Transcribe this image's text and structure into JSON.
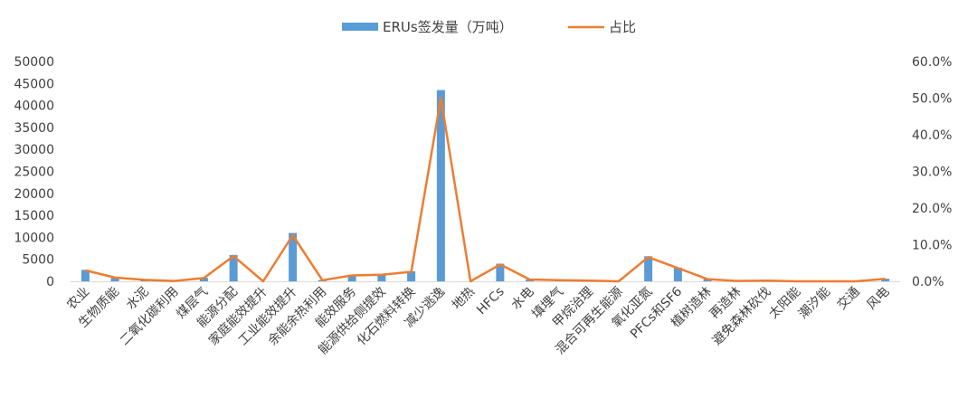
{
  "chart_data": {
    "type": "bar",
    "title": "",
    "categories": [
      "农业",
      "生物质能",
      "水泥",
      "二氧化碳利用",
      "煤层气",
      "能源分配",
      "家庭能效提升",
      "工业能效提升",
      "余能余热利用",
      "能效服务",
      "能源供给侧提效",
      "化石燃料转换",
      "减少逃逸",
      "地热",
      "HFCs",
      "水电",
      "填埋气",
      "甲烷治理",
      "混合可再生能源",
      "氧化亚氮",
      "PFCs和SF6",
      "植树造林",
      "再造林",
      "避免森林砍伐",
      "太阳能",
      "潮汐能",
      "交通",
      "风电"
    ],
    "series": [
      {
        "name": "ERUs签发量（万吨）",
        "type": "bar",
        "axis": "left",
        "color": "#5b9bd5",
        "values": [
          2600,
          900,
          350,
          100,
          800,
          6000,
          0,
          11000,
          300,
          1400,
          1600,
          2300,
          43500,
          0,
          4000,
          400,
          250,
          150,
          0,
          5700,
          3100,
          500,
          100,
          200,
          0,
          0,
          0,
          600
        ]
      },
      {
        "name": "占比",
        "type": "line",
        "axis": "right",
        "color": "#ed7d31",
        "values": [
          0.03,
          0.01,
          0.004,
          0.001,
          0.009,
          0.069,
          0.0,
          0.126,
          0.003,
          0.016,
          0.018,
          0.026,
          0.5,
          0.0,
          0.046,
          0.005,
          0.003,
          0.002,
          0.0,
          0.066,
          0.036,
          0.006,
          0.001,
          0.002,
          0.0,
          0.0,
          0.0,
          0.007
        ]
      }
    ],
    "y_left": {
      "ylim": [
        0,
        50000
      ],
      "ticks": [
        "0",
        "5000",
        "10000",
        "15000",
        "20000",
        "25000",
        "30000",
        "35000",
        "40000",
        "45000",
        "50000"
      ]
    },
    "y_right": {
      "ylim": [
        0,
        0.6
      ],
      "ticks": [
        "0.0%",
        "10.0%",
        "20.0%",
        "30.0%",
        "40.0%",
        "50.0%",
        "60.0%"
      ]
    },
    "legend": {
      "position": "top",
      "entries": [
        "ERUs签发量（万吨）",
        "占比"
      ]
    },
    "grid": false
  }
}
